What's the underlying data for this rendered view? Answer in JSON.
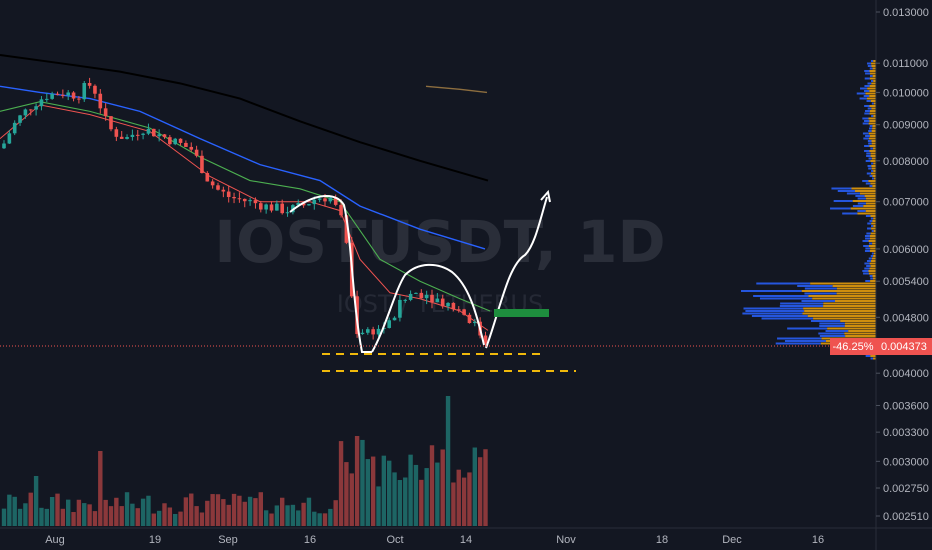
{
  "chart_data": {
    "type": "candlestick",
    "symbol_watermark": "IOSTUSDT, 1D",
    "sub_watermark": "IOST / TETHERUS",
    "y_axis": {
      "scale": "log",
      "ticks": [
        "0.013000",
        "0.011000",
        "0.010000",
        "0.009000",
        "0.008000",
        "0.007000",
        "0.006000",
        "0.005400",
        "0.004800",
        "0.004000",
        "0.003600",
        "0.003300",
        "0.003000",
        "0.002750",
        "0.002510"
      ],
      "range": [
        0.0024,
        0.0135
      ]
    },
    "x_axis": {
      "ticks": [
        "Aug",
        "19",
        "Sep",
        "16",
        "Oct",
        "14",
        "Nov",
        "18",
        "Dec",
        "16"
      ]
    },
    "last_price": {
      "value": "0.004373",
      "change": "-46.25%"
    },
    "volume_note": "volume histogram along bottom of chart",
    "candles_summary": {
      "start_price": 0.008,
      "peak": 0.0112,
      "low": 0.0041,
      "last": 0.004373
    },
    "annotations": {
      "support_levels": [
        0.0043,
        0.0041
      ],
      "target_box": 0.0048,
      "projection_arrow_target": 0.0074
    },
    "colors": {
      "background": "#131722",
      "up": "#26a69a",
      "down": "#ef5350",
      "ma_slow": "#000000",
      "ma_mid": "#2962ff",
      "ma_fast": "#4caf50",
      "ma_red": "#ef5350",
      "support_line": "#f0b90b",
      "target_box": "#1e8e3e",
      "last_price_line": "#ef5350"
    }
  }
}
